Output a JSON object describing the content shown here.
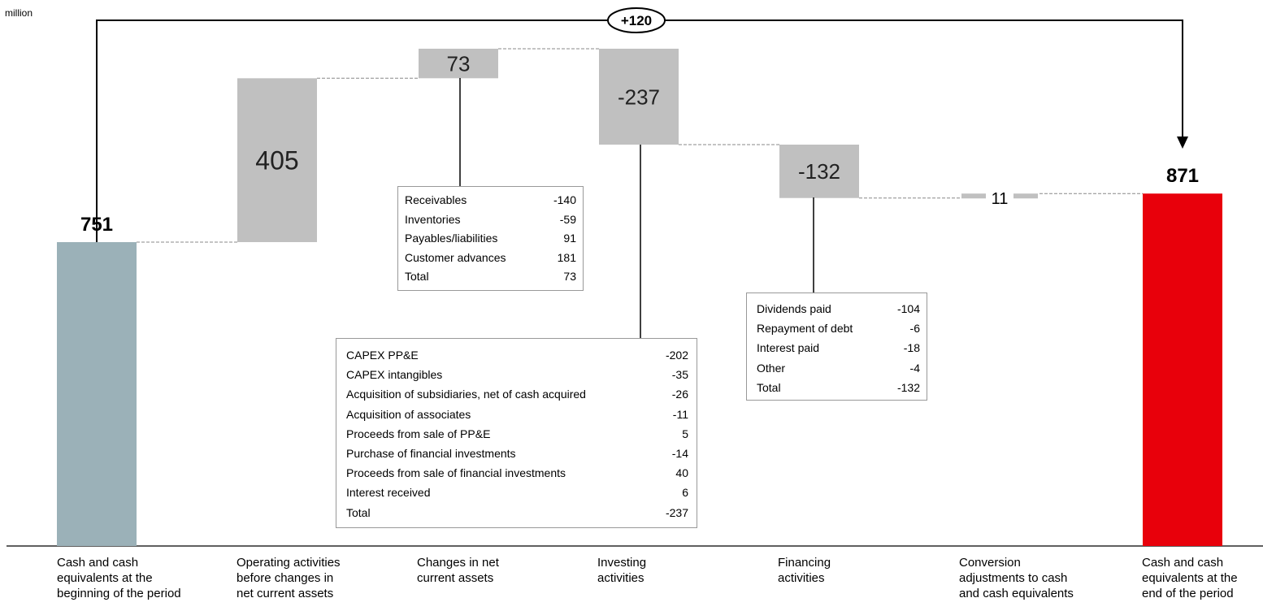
{
  "unit": "million",
  "total_change_label": "+120",
  "colors": {
    "start_bar": "#9bb1b8",
    "delta_bar": "#c0c0c0",
    "end_bar": "#e8000b",
    "connector": "#888888"
  },
  "chart_data": {
    "type": "bar",
    "subtype": "waterfall",
    "categories": [
      "Cash and cash\nequivalents at the\nbeginning of the period",
      "Operating activities\nbefore changes in\nnet current assets",
      "Changes in net\ncurrent assets",
      "Investing\nactivities",
      "Financing\nactivities",
      "Conversion\nadjustments to cash\nand cash equivalents",
      "Cash and cash\nequivalents at the\nend of the period"
    ],
    "values": [
      751,
      405,
      73,
      -237,
      -132,
      11,
      871
    ],
    "value_labels": [
      "751",
      "405",
      "73",
      "-237",
      "-132",
      "11",
      "871"
    ],
    "bar_kinds": [
      "total",
      "delta",
      "delta",
      "delta",
      "delta",
      "delta",
      "total"
    ],
    "total_change": 120
  },
  "breakdowns": {
    "net_current_assets": {
      "rows": [
        {
          "label": "Receivables",
          "value": "-140"
        },
        {
          "label": "Inventories",
          "value": "-59"
        },
        {
          "label": "Payables/liabilities",
          "value": "91"
        },
        {
          "label": "Customer advances",
          "value": "181"
        },
        {
          "label": "Total",
          "value": "73"
        }
      ]
    },
    "investing": {
      "rows": [
        {
          "label": "CAPEX PP&E",
          "value": "-202"
        },
        {
          "label": "CAPEX intangibles",
          "value": "-35"
        },
        {
          "label": "Acquisition of subsidiaries, net of cash acquired",
          "value": "-26"
        },
        {
          "label": "Acquisition of associates",
          "value": "-11"
        },
        {
          "label": "Proceeds from sale of PP&E",
          "value": "5"
        },
        {
          "label": "Purchase of financial investments",
          "value": "-14"
        },
        {
          "label": "Proceeds from sale of financial investments",
          "value": "40"
        },
        {
          "label": "Interest received",
          "value": "6"
        },
        {
          "label": "Total",
          "value": "-237"
        }
      ]
    },
    "financing": {
      "rows": [
        {
          "label": "Dividends paid",
          "value": "-104"
        },
        {
          "label": "Repayment of debt",
          "value": "-6"
        },
        {
          "label": "Interest paid",
          "value": "-18"
        },
        {
          "label": "Other",
          "value": "-4"
        },
        {
          "label": "Total",
          "value": "-132"
        }
      ]
    }
  }
}
